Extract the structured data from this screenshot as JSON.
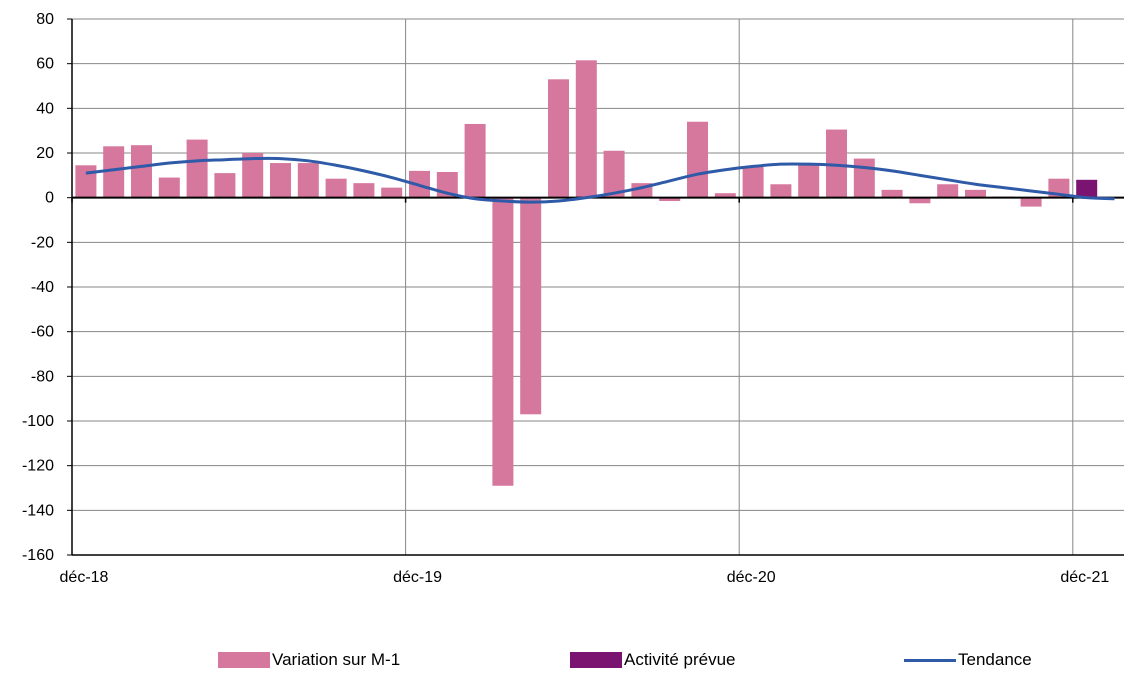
{
  "chart_data": {
    "type": "bar",
    "x_tick_labels": [
      "déc-18",
      "déc-19",
      "déc-20",
      "déc-21"
    ],
    "y_tick_labels": [
      "80",
      "60",
      "40",
      "20",
      "0",
      "-20",
      "-40",
      "-60",
      "-80",
      "-100",
      "-120",
      "-140",
      "-160"
    ],
    "ylim": [
      -160,
      80
    ],
    "ystep": 20,
    "grid": true,
    "legend_position": "bottom",
    "series": [
      {
        "name": "Variation sur M-1",
        "type": "bar",
        "color": "#d6779d",
        "x": [
          "janv-19",
          "févr-19",
          "mars-19",
          "avr-19",
          "mai-19",
          "juin-19",
          "juil-19",
          "août-19",
          "sept-19",
          "oct-19",
          "nov-19",
          "déc-19",
          "janv-20",
          "févr-20",
          "mars-20",
          "avr-20",
          "mai-20",
          "juin-20",
          "juil-20",
          "août-20",
          "sept-20",
          "oct-20",
          "nov-20",
          "déc-20",
          "janv-21",
          "févr-21",
          "mars-21",
          "avr-21",
          "mai-21",
          "juin-21",
          "juil-21",
          "août-21",
          "sept-21",
          "oct-21",
          "nov-21",
          "déc-21",
          "janv-22"
        ],
        "values": [
          14.5,
          23,
          23.5,
          9,
          26,
          11,
          20,
          15.5,
          15.5,
          8.5,
          6.5,
          4.5,
          12,
          11.5,
          33,
          -129,
          -97,
          53,
          61.5,
          21,
          6.5,
          -1.5,
          34,
          2,
          14,
          6,
          15.5,
          30.5,
          17.5,
          3.5,
          -2.5,
          6,
          3.5,
          0.5,
          -4,
          8.5,
          null
        ]
      },
      {
        "name": "Activité prévue",
        "type": "bar",
        "color": "#7b1470",
        "x": [
          "janv-22"
        ],
        "values": [
          8
        ]
      },
      {
        "name": "Tendance",
        "type": "line",
        "color": "#2e5aa8",
        "x": [
          "déc-18",
          "janv-19",
          "févr-19",
          "mars-19",
          "avr-19",
          "mai-19",
          "juin-19",
          "juil-19",
          "août-19",
          "sept-19",
          "oct-19",
          "nov-19",
          "déc-19",
          "janv-20",
          "févr-20",
          "mars-20",
          "avr-20",
          "mai-20",
          "juin-20",
          "juil-20",
          "août-20",
          "sept-20",
          "oct-20",
          "nov-20",
          "déc-20",
          "janv-21",
          "févr-21",
          "mars-21",
          "avr-21",
          "mai-21",
          "juin-21",
          "juil-21",
          "août-21",
          "sept-21",
          "oct-21",
          "nov-21",
          "déc-21",
          "janv-22"
        ],
        "values": [
          11,
          12.5,
          14,
          15.5,
          16.5,
          17,
          17.5,
          17.5,
          16.5,
          14.5,
          12,
          9,
          5.5,
          2,
          -0.5,
          -1.5,
          -2,
          -1.5,
          0,
          2,
          4.5,
          7.5,
          10.5,
          12.5,
          14,
          15,
          15,
          14.5,
          13.5,
          12,
          10,
          8,
          6,
          4.5,
          3,
          1.5,
          0,
          -0.5
        ]
      }
    ]
  }
}
